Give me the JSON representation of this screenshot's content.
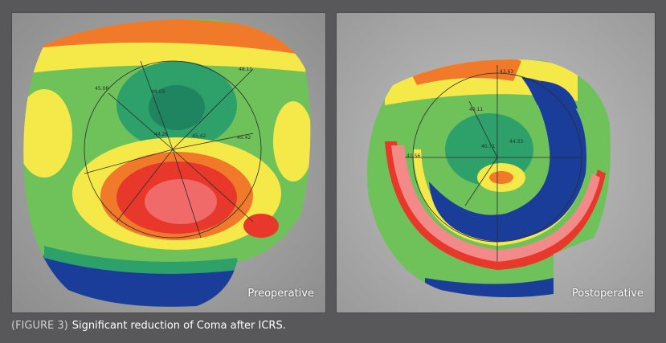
{
  "panels": {
    "left": {
      "label": "Preoperative",
      "measurements": [
        "45.08",
        "48.11",
        "48.03",
        "44.26",
        "45.42",
        "45.42"
      ]
    },
    "right": {
      "label": "Postoperative",
      "measurements": [
        "43.63",
        "40.11",
        "41.56",
        "40.71",
        "44.33"
      ]
    }
  },
  "caption": {
    "figure_label": "(FIGURE 3)",
    "text": "Significant reduction of Coma after ICRS."
  },
  "colors": {
    "background": "#58585a",
    "map_red": "#e8382b",
    "map_orange": "#f07a2a",
    "map_yellow": "#f5e94a",
    "map_green": "#6fc15a",
    "map_teal": "#2ea06a",
    "map_blue": "#1b3d9a"
  }
}
